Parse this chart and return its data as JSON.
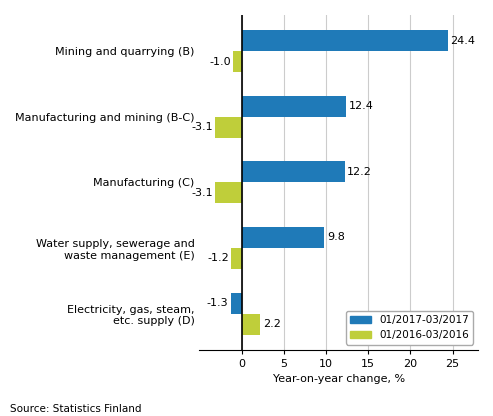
{
  "categories": [
    "Mining and quarrying (B)",
    "Manufacturing and mining (B-C)",
    "Manufacturing (C)",
    "Water supply, sewerage and\nwaste management (E)",
    "Electricity, gas, steam,\netc. supply (D)"
  ],
  "series_2017": [
    24.4,
    12.4,
    12.2,
    9.8,
    -1.3
  ],
  "series_2016": [
    -1.0,
    -3.1,
    -3.1,
    -1.2,
    2.2
  ],
  "color_2017": "#1f7ab8",
  "color_2016": "#bfce3a",
  "legend_2017": "01/2017-03/2017",
  "legend_2016": "01/2016-03/2016",
  "xlabel": "Year-on-year change, %",
  "xlim": [
    -5,
    28
  ],
  "source": "Source: Statistics Finland",
  "bar_height": 0.32,
  "background_color": "#ffffff",
  "grid_color": "#cccccc"
}
